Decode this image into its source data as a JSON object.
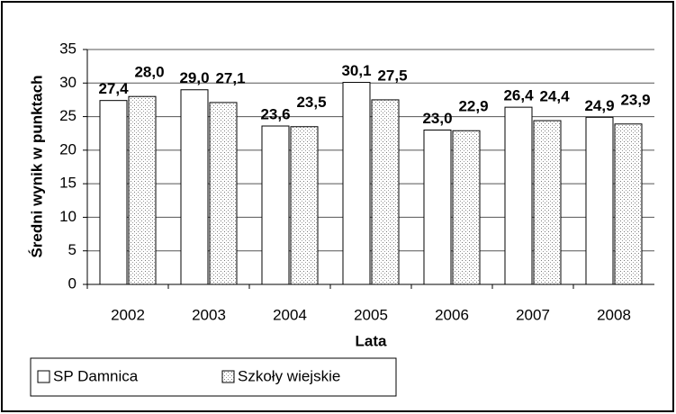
{
  "chart_data": {
    "type": "bar",
    "categories": [
      "2002",
      "2003",
      "2004",
      "2005",
      "2006",
      "2007",
      "2008"
    ],
    "series": [
      {
        "name": "SP Damnica",
        "color": "#ffffff",
        "values": [
          27.4,
          29.0,
          23.6,
          30.1,
          23.0,
          26.4,
          24.9
        ],
        "value_labels": [
          "27,4",
          "29,0",
          "23,6",
          "30,1",
          "23,0",
          "26,4",
          "24,9"
        ]
      },
      {
        "name": "Szkoły wiejskie",
        "color": "#ffffff",
        "pattern": "dots",
        "values": [
          28.0,
          27.1,
          23.5,
          27.5,
          22.9,
          24.4,
          23.9
        ],
        "value_labels": [
          "28,0",
          "27,1",
          "23,5",
          "27,5",
          "22,9",
          "24,4",
          "23,9"
        ]
      }
    ],
    "xlabel": "Lata",
    "ylabel": "Średni wynik w punktach",
    "ylim": [
      0,
      35
    ],
    "yticks": [
      0,
      5,
      10,
      15,
      20,
      25,
      30,
      35
    ],
    "grid": true,
    "legend": "bottom-left"
  }
}
